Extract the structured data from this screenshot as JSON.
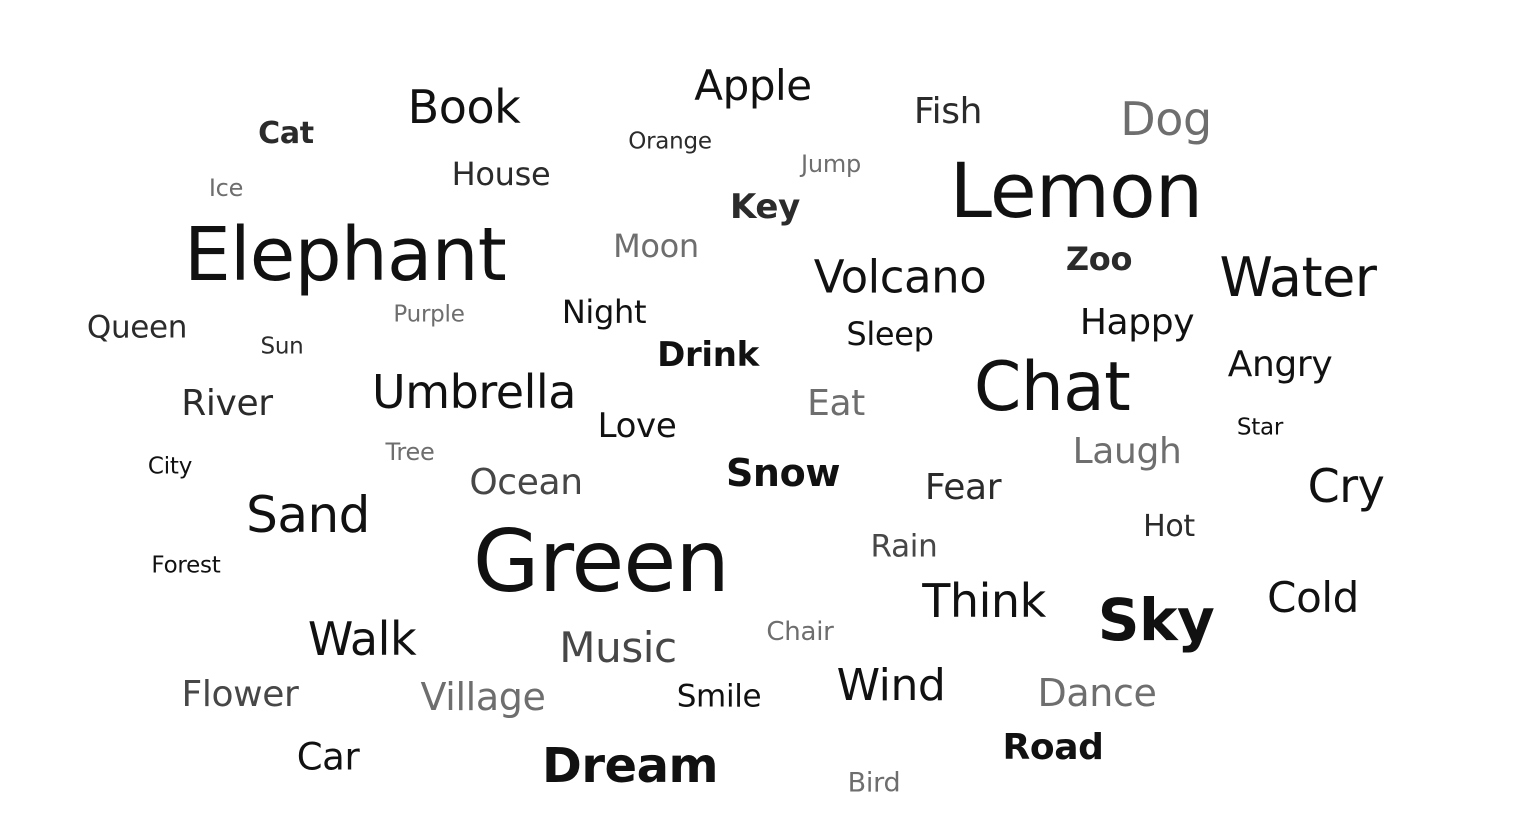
{
  "word_cloud": {
    "words": [
      {
        "text": "Apple"
      },
      {
        "text": "Book"
      },
      {
        "text": "Fish"
      },
      {
        "text": "Dog"
      },
      {
        "text": "Cat"
      },
      {
        "text": "Orange"
      },
      {
        "text": "Jump"
      },
      {
        "text": "House"
      },
      {
        "text": "Ice"
      },
      {
        "text": "Key"
      },
      {
        "text": "Lemon"
      },
      {
        "text": "Elephant"
      },
      {
        "text": "Moon"
      },
      {
        "text": "Zoo"
      },
      {
        "text": "Volcano"
      },
      {
        "text": "Water"
      },
      {
        "text": "Queen"
      },
      {
        "text": "Purple"
      },
      {
        "text": "Night"
      },
      {
        "text": "Sun"
      },
      {
        "text": "Sleep"
      },
      {
        "text": "Happy"
      },
      {
        "text": "Drink"
      },
      {
        "text": "Angry"
      },
      {
        "text": "River"
      },
      {
        "text": "Umbrella"
      },
      {
        "text": "Chat"
      },
      {
        "text": "Eat"
      },
      {
        "text": "Love"
      },
      {
        "text": "Star"
      },
      {
        "text": "Tree"
      },
      {
        "text": "Laugh"
      },
      {
        "text": "City"
      },
      {
        "text": "Snow"
      },
      {
        "text": "Ocean"
      },
      {
        "text": "Fear"
      },
      {
        "text": "Cry"
      },
      {
        "text": "Sand"
      },
      {
        "text": "Hot"
      },
      {
        "text": "Green"
      },
      {
        "text": "Rain"
      },
      {
        "text": "Forest"
      },
      {
        "text": "Think"
      },
      {
        "text": "Cold"
      },
      {
        "text": "Sky"
      },
      {
        "text": "Walk"
      },
      {
        "text": "Chair"
      },
      {
        "text": "Music"
      },
      {
        "text": "Wind"
      },
      {
        "text": "Flower"
      },
      {
        "text": "Village"
      },
      {
        "text": "Smile"
      },
      {
        "text": "Dance"
      },
      {
        "text": "Road"
      },
      {
        "text": "Car"
      },
      {
        "text": "Dream"
      },
      {
        "text": "Bird"
      }
    ]
  }
}
